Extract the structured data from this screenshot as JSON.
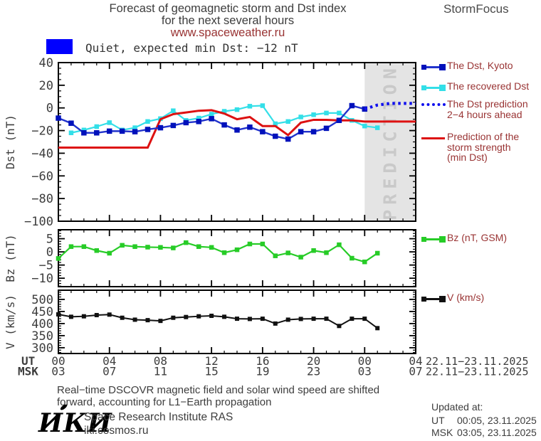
{
  "header": {
    "title1": "Forecast of geomagnetic storm and Dst index",
    "title2": "for the next several hours",
    "title3": "www.spaceweather.ru",
    "brand": "StormFocus"
  },
  "status": {
    "level": "Quiet",
    "text": "Quiet, expected min Dst: −12 nT",
    "swatch_color": "#0000ff"
  },
  "legend_dst": {
    "kyoto": {
      "label": "The Dst, Kyoto"
    },
    "recovered": {
      "label": "The recovered Dst"
    },
    "prediction": {
      "lines": [
        "The Dst prediction",
        "2−4 hours ahead"
      ]
    },
    "strength": {
      "lines": [
        "Prediction of the",
        "storm strength",
        "(min Dst)"
      ]
    }
  },
  "legend_bz": {
    "label": "Bz (nT, GSM)"
  },
  "legend_v": {
    "label": "V (km/s)"
  },
  "axis": {
    "ut_label": "UT",
    "msk_label": "MSK",
    "ut_ticks": [
      "00",
      "04",
      "08",
      "12",
      "16",
      "20",
      "00",
      "04"
    ],
    "msk_ticks": [
      "03",
      "07",
      "11",
      "15",
      "19",
      "23",
      "03",
      "07"
    ],
    "ut_date": "22.11−23.11.2025",
    "msk_date": "22.11−23.11.2025"
  },
  "footer": {
    "note1": "Real−time DSCOVR magnetic field and solar wind speed are shifted",
    "note2": "forward, accounting for L1−Earth propagation",
    "logo": "ИКИ",
    "institute": "Space Research Institute RAS",
    "site": "iki.cosmos.ru",
    "updated_label": "Updated at:",
    "updated_ut_label": "UT",
    "updated_ut_value": "00:05, 23.11.2025",
    "updated_msk_label": "MSK",
    "updated_msk_value": "03:05, 23.11.2025"
  },
  "colors": {
    "kyoto_line": "#2233cc",
    "kyoto_marker": "#0011bb",
    "recovered": "#33dfe8",
    "prediction": "#1111ee",
    "strength": "#dd1111",
    "bz": "#27cc27",
    "v_line": "#111111",
    "band": "#e4e4e4",
    "band_text": "#c9c9c9",
    "chart_text": "#3d3d3d",
    "legend_text": "#993333",
    "status_swatch": "#0000ff"
  },
  "chart_data": [
    {
      "type": "line",
      "panel": "dst",
      "ylabel": "Dst (nT)",
      "ylim": [
        -100,
        40
      ],
      "yticks": [
        40,
        20,
        0,
        -20,
        -40,
        -60,
        -80,
        -100
      ],
      "yminor": 5,
      "xlim": [
        0,
        28
      ],
      "xmajor": 4,
      "xminor": 1,
      "prediction_zone": {
        "x_start": 24,
        "x_end": 28,
        "label": "PREDICTION",
        "band_color": "#e4e4e4",
        "text_color": "#c9c9c9"
      },
      "series": [
        {
          "name": "The recovered Dst",
          "color": "#33dfe8",
          "marker": true,
          "marker_size": 6.5,
          "lw": 2.2,
          "x": [
            1,
            2,
            3,
            4,
            5,
            6,
            7,
            8,
            9,
            10,
            11,
            12,
            13,
            14,
            15,
            16,
            17,
            18,
            19,
            20,
            21,
            22,
            23,
            24,
            25
          ],
          "y": [
            -22,
            -19.5,
            -16.5,
            -13,
            -19.5,
            -17.5,
            -12,
            -9.5,
            -2.5,
            -11,
            -9,
            -5.5,
            -3,
            -1.5,
            1.5,
            2,
            -14,
            -12,
            -8,
            -6,
            -4.5,
            -4.5,
            -11,
            -16,
            -17.5
          ]
        },
        {
          "name": "Prediction of the storm strength (min Dst)",
          "color": "#dd1111",
          "marker": false,
          "lw": 3,
          "x": [
            0,
            1,
            2,
            3,
            4,
            5,
            6,
            7,
            8,
            9,
            10,
            11,
            12,
            13,
            14,
            15,
            16,
            17,
            18,
            19,
            20,
            21,
            22,
            23,
            24,
            25,
            26,
            27,
            28
          ],
          "y": [
            -35,
            -35,
            -35,
            -35,
            -35,
            -35,
            -35,
            -35,
            -10,
            -5.5,
            -4,
            -2.5,
            -2,
            -5,
            -10,
            -8,
            -16,
            -16,
            -24,
            -13,
            -10.5,
            -10.5,
            -11,
            -11,
            -12,
            -12,
            -12,
            -12,
            -12
          ]
        },
        {
          "name": "The Dst, Kyoto",
          "color": "#2233cc",
          "marker": true,
          "marker_color": "#0011bb",
          "marker_size": 7.5,
          "lw": 2.4,
          "x": [
            0,
            1,
            2,
            3,
            4,
            5,
            6,
            7,
            8,
            9,
            10,
            11,
            12,
            13,
            14,
            15,
            16,
            17,
            18,
            19,
            20,
            21,
            22,
            23,
            24
          ],
          "y": [
            -9,
            -13.5,
            -22,
            -22,
            -20.5,
            -20.5,
            -21,
            -19,
            -17.5,
            -15.5,
            -13,
            -12,
            -9.5,
            -15,
            -19.5,
            -17,
            -21,
            -25,
            -27.5,
            -21,
            -21,
            -18,
            -11,
            2,
            -1
          ]
        },
        {
          "name": "The Dst prediction 2−4 hours ahead",
          "color": "#1111ee",
          "style": "dotted",
          "marker": false,
          "lw": 4.2,
          "x": [
            24,
            25,
            26,
            27,
            28
          ],
          "y": [
            -1,
            2.5,
            4,
            4,
            4
          ]
        }
      ]
    },
    {
      "type": "line",
      "panel": "bz",
      "ylabel": "Bz (nT)",
      "ylim": [
        -13.2,
        8.4
      ],
      "yticks": [
        5,
        0,
        -5,
        -10
      ],
      "yminor": 1,
      "xlim": [
        0,
        28
      ],
      "xmajor": 4,
      "xminor": 1,
      "series": [
        {
          "name": "Bz (nT, GSM)",
          "color": "#27cc27",
          "marker": true,
          "marker_size": 6.5,
          "lw": 2.2,
          "x": [
            0,
            1,
            2,
            3,
            4,
            5,
            6,
            7,
            8,
            9,
            10,
            11,
            12,
            13,
            14,
            15,
            16,
            17,
            18,
            19,
            20,
            21,
            22,
            23,
            24,
            25
          ],
          "y": [
            -2.5,
            2,
            2,
            0.5,
            -0.5,
            2.5,
            2,
            1.8,
            1.7,
            1.5,
            3.5,
            2,
            1.7,
            -0.3,
            0.8,
            3,
            3,
            -1.5,
            -0.4,
            -2,
            0.5,
            -0.3,
            2.7,
            -2.4,
            -3.8,
            -0.5
          ]
        }
      ]
    },
    {
      "type": "line",
      "panel": "v",
      "ylabel": "V (km/s)",
      "ylim": [
        276,
        538
      ],
      "yticks": [
        500,
        450,
        400,
        350,
        300
      ],
      "yminor": 10,
      "xlim": [
        0,
        28
      ],
      "xmajor": 4,
      "xminor": 1,
      "series": [
        {
          "name": "V (km/s)",
          "color": "#111111",
          "marker": true,
          "marker_size": 6,
          "lw": 2,
          "x": [
            0,
            1,
            2,
            3,
            4,
            5,
            6,
            7,
            8,
            9,
            10,
            11,
            12,
            13,
            14,
            15,
            16,
            17,
            18,
            19,
            20,
            21,
            22,
            23,
            24,
            25
          ],
          "y": [
            438,
            428,
            430,
            435,
            437,
            424,
            416,
            414,
            411,
            424,
            427,
            430,
            432,
            428,
            420,
            419,
            420,
            400,
            416,
            419,
            420,
            420,
            390,
            420,
            420,
            381
          ]
        }
      ]
    }
  ]
}
